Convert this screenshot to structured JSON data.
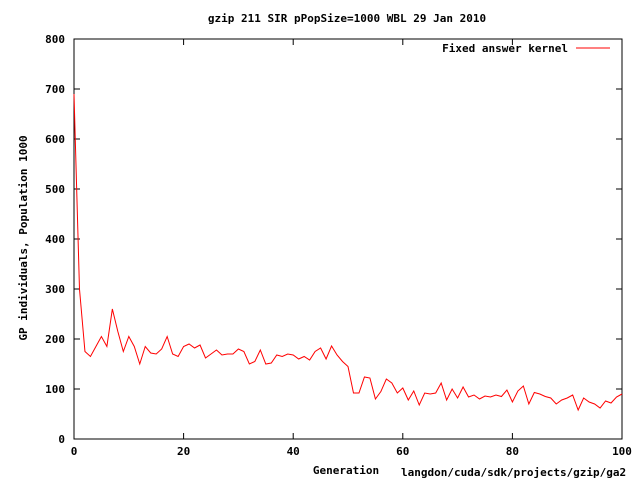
{
  "chart_data": {
    "type": "line",
    "title": "gzip 211 SIR pPopSize=1000 WBL 29 Jan 2010",
    "xlabel": "Generation",
    "ylabel": "GP individuals, Population 1000",
    "footer": "langdon/cuda/sdk/projects/gzip/ga2",
    "xlim": [
      0,
      100
    ],
    "ylim": [
      0,
      800
    ],
    "xticks": [
      0,
      20,
      40,
      60,
      80,
      100
    ],
    "yticks": [
      0,
      100,
      200,
      300,
      400,
      500,
      600,
      700,
      800
    ],
    "grid": false,
    "legend": "top-right",
    "series": [
      {
        "name": "Fixed answer kernel",
        "color": "#ff0000",
        "x": [
          0,
          1,
          2,
          3,
          4,
          5,
          6,
          7,
          8,
          9,
          10,
          11,
          12,
          13,
          14,
          15,
          16,
          17,
          18,
          19,
          20,
          21,
          22,
          23,
          24,
          25,
          26,
          27,
          28,
          29,
          30,
          31,
          32,
          33,
          34,
          35,
          36,
          37,
          38,
          39,
          40,
          41,
          42,
          43,
          44,
          45,
          46,
          47,
          48,
          49,
          50,
          51,
          52,
          53,
          54,
          55,
          56,
          57,
          58,
          59,
          60,
          61,
          62,
          63,
          64,
          65,
          66,
          67,
          68,
          69,
          70,
          71,
          72,
          73,
          74,
          75,
          76,
          77,
          78,
          79,
          80,
          81,
          82,
          83,
          84,
          85,
          86,
          87,
          88,
          89,
          90,
          91,
          92,
          93,
          94,
          95,
          96,
          97,
          98,
          99,
          100
        ],
        "values": [
          690,
          300,
          175,
          165,
          185,
          205,
          185,
          260,
          215,
          175,
          205,
          185,
          150,
          185,
          172,
          170,
          180,
          205,
          170,
          165,
          185,
          190,
          182,
          188,
          162,
          170,
          178,
          168,
          170,
          170,
          180,
          175,
          150,
          155,
          178,
          150,
          152,
          168,
          165,
          170,
          168,
          160,
          165,
          158,
          175,
          182,
          160,
          186,
          168,
          155,
          145,
          92,
          92,
          124,
          122,
          80,
          95,
          120,
          112,
          92,
          102,
          78,
          96,
          68,
          92,
          90,
          92,
          112,
          78,
          100,
          82,
          104,
          84,
          88,
          80,
          86,
          84,
          88,
          85,
          98,
          74,
          96,
          106,
          70,
          93,
          90,
          85,
          82,
          70,
          78,
          82,
          88,
          58,
          82,
          74,
          70,
          62,
          76,
          72,
          84,
          90
        ]
      }
    ]
  }
}
